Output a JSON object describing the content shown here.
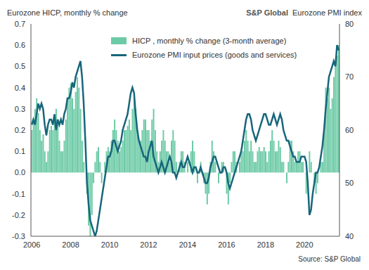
{
  "chart_data": {
    "type": "bar",
    "y_label": "Eurozone HICP, monthly % change",
    "y2_label": "Eurozone PMI index",
    "annotations": [
      "S&P Global",
      "Source: S&P Global"
    ],
    "legend": "top",
    "grid": false,
    "categories": [
      "2006",
      null,
      null,
      null,
      null,
      null,
      null,
      null,
      null,
      null,
      null,
      null,
      null,
      null,
      null,
      null,
      null,
      null,
      null,
      null,
      null,
      null,
      null,
      null,
      "2008",
      null,
      null,
      null,
      null,
      null,
      null,
      null,
      null,
      null,
      null,
      null,
      null,
      null,
      null,
      null,
      null,
      null,
      null,
      null,
      null,
      null,
      null,
      null,
      "2010",
      null,
      null,
      null,
      null,
      null,
      null,
      null,
      null,
      null,
      null,
      null,
      null,
      null,
      null,
      null,
      null,
      null,
      null,
      null,
      null,
      null,
      null,
      null,
      "2012",
      null,
      null,
      null,
      null,
      null,
      null,
      null,
      null,
      null,
      null,
      null,
      null,
      null,
      null,
      null,
      null,
      null,
      null,
      null,
      null,
      null,
      null,
      null,
      "2014",
      null,
      null,
      null,
      null,
      null,
      null,
      null,
      null,
      null,
      null,
      null,
      null,
      null,
      null,
      null,
      null,
      null,
      null,
      null,
      null,
      null,
      null,
      null,
      "2016",
      null,
      null,
      null,
      null,
      null,
      null,
      null,
      null,
      null,
      null,
      null,
      null,
      null,
      null,
      null,
      null,
      null,
      null,
      null,
      null,
      null,
      null,
      null,
      "2018",
      null,
      null,
      null,
      null,
      null,
      null,
      null,
      null,
      null,
      null,
      null,
      null,
      null,
      null,
      null,
      null,
      null,
      null,
      null,
      null,
      null,
      null,
      null,
      "2020",
      null,
      null,
      null,
      null,
      null,
      null,
      null,
      null,
      null,
      null,
      null,
      null,
      null,
      null,
      null,
      null,
      null,
      null,
      null,
      null,
      null
    ],
    "series": [
      {
        "name": "HICP , monthly % change (3-month average)",
        "type": "bar",
        "color": "#6ccaa6",
        "values": [
          0.2,
          0.25,
          0.3,
          0.35,
          0.28,
          0.2,
          0.15,
          0.18,
          0.1,
          0.05,
          0.1,
          0.2,
          0.22,
          0.2,
          0.25,
          0.3,
          0.25,
          0.15,
          0.1,
          0.1,
          0.15,
          0.25,
          0.35,
          0.4,
          0.42,
          0.35,
          0.3,
          0.38,
          0.45,
          0.4,
          0.3,
          0.15,
          0.05,
          0.0,
          -0.1,
          -0.25,
          -0.3,
          -0.2,
          -0.05,
          0.05,
          0.1,
          0.12,
          0.05,
          -0.05,
          0.0,
          0.05,
          0.1,
          0.12,
          0.1,
          0.15,
          0.2,
          0.25,
          0.2,
          0.15,
          0.1,
          0.12,
          0.15,
          0.2,
          0.2,
          0.22,
          0.25,
          0.2,
          0.3,
          0.35,
          0.3,
          0.2,
          0.15,
          0.15,
          0.2,
          0.25,
          0.25,
          0.2,
          0.2,
          0.15,
          0.25,
          0.3,
          0.2,
          0.1,
          0.05,
          0.1,
          0.15,
          0.2,
          0.15,
          0.1,
          0.1,
          0.05,
          0.15,
          0.2,
          0.15,
          0.05,
          0.0,
          0.05,
          0.1,
          0.1,
          0.05,
          0.0,
          0.05,
          0.0,
          0.1,
          0.15,
          0.1,
          0.0,
          -0.05,
          0.0,
          0.05,
          0.0,
          -0.05,
          -0.1,
          -0.15,
          -0.1,
          0.05,
          0.15,
          0.1,
          0.05,
          0.0,
          -0.05,
          0.0,
          0.05,
          0.05,
          0.0,
          -0.1,
          -0.15,
          -0.05,
          0.05,
          0.1,
          0.1,
          0.05,
          0.0,
          0.05,
          0.1,
          0.1,
          0.15,
          0.2,
          0.15,
          0.1,
          0.15,
          0.1,
          0.05,
          0.05,
          0.1,
          0.12,
          0.1,
          0.1,
          0.12,
          0.1,
          0.05,
          0.1,
          0.15,
          0.2,
          0.15,
          0.1,
          0.1,
          0.15,
          0.12,
          0.05,
          0.05,
          0.0,
          -0.05,
          0.05,
          0.15,
          0.15,
          0.1,
          0.05,
          0.05,
          0.1,
          0.1,
          0.05,
          0.05,
          0.0,
          -0.1,
          0.0,
          0.1,
          0.05,
          0.0,
          -0.05,
          -0.1,
          -0.05,
          0.0,
          0.05,
          0.05,
          0.2,
          0.4,
          0.35,
          0.4,
          0.3,
          0.35,
          0.45,
          0.5,
          0.55,
          0.6
        ]
      },
      {
        "name": "Eurozone PMI input prices (goods and services)",
        "type": "line",
        "axis": "y2",
        "color": "#17667a",
        "values": [
          61,
          62,
          61,
          63,
          65,
          64,
          65,
          64,
          61,
          59,
          61,
          62,
          62,
          61,
          63,
          60,
          62,
          61,
          62,
          61,
          63,
          64,
          66,
          66,
          67,
          69,
          68,
          70,
          71,
          72,
          73,
          70,
          65,
          58,
          50,
          46,
          43,
          42,
          41,
          40,
          41,
          43,
          45,
          47,
          49,
          51,
          53,
          55,
          55,
          56,
          58,
          58,
          57,
          56,
          57,
          58,
          60,
          61,
          62,
          63,
          65,
          67,
          68,
          67,
          63,
          60,
          58,
          57,
          56,
          55,
          55,
          54,
          56,
          57,
          58,
          55,
          54,
          53,
          52,
          53,
          54,
          53,
          52,
          53,
          54,
          55,
          54,
          52,
          52,
          51,
          52,
          53,
          54,
          53,
          53,
          54,
          55,
          54,
          53,
          52,
          53,
          53,
          52,
          52,
          53,
          52,
          51,
          50,
          50,
          51,
          53,
          54,
          55,
          55,
          54,
          53,
          52,
          52,
          53,
          53,
          52,
          50,
          49,
          50,
          51,
          52,
          53,
          54,
          55,
          56,
          58,
          60,
          62,
          63,
          63,
          62,
          60,
          59,
          58,
          59,
          60,
          61,
          62,
          63,
          63,
          62,
          61,
          61,
          62,
          63,
          62,
          61,
          62,
          63,
          62,
          60,
          59,
          58,
          58,
          57,
          56,
          55,
          55,
          54,
          54,
          54,
          55,
          55,
          55,
          54,
          50,
          44,
          45,
          48,
          50,
          52,
          52,
          53,
          55,
          57,
          60,
          64,
          67,
          70,
          71,
          72,
          73,
          72,
          76,
          75
        ]
      }
    ],
    "ylim": [
      -0.3,
      0.7
    ],
    "yticks": [
      -0.3,
      -0.2,
      -0.1,
      {
        "value": 0,
        "label": "0.0"
      },
      0.1,
      0.2,
      0.3,
      0.4,
      0.5,
      0.6,
      0.7
    ],
    "y2lim": [
      40,
      80
    ],
    "y2ticks": [
      40,
      50,
      60,
      70,
      80
    ]
  }
}
